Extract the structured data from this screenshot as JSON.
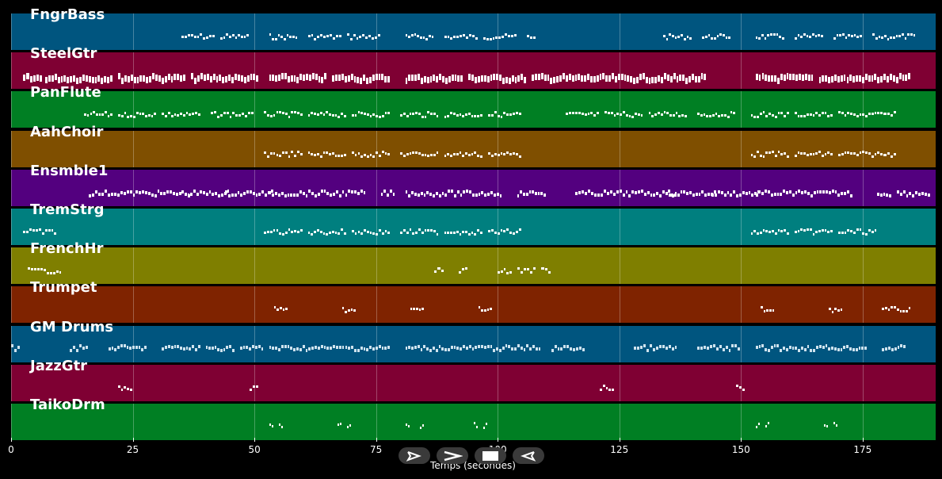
{
  "xlabel": "Temps (secondes)",
  "x_ticks": [
    0,
    25,
    50,
    75,
    100,
    125,
    150,
    175
  ],
  "x_range": [
    0,
    190
  ],
  "controls": [
    {
      "name": "play-button",
      "icon": "play-icon"
    },
    {
      "name": "forward-button",
      "icon": "chevron-right-icon"
    },
    {
      "name": "stop-button",
      "icon": "stop-icon"
    },
    {
      "name": "rewind-button",
      "icon": "rewind-icon"
    }
  ],
  "tracks": [
    {
      "label": "FngrBass",
      "color": "#00557f",
      "notes": [
        [
          35,
          7
        ],
        [
          43,
          6
        ],
        [
          53,
          6
        ],
        [
          61,
          7
        ],
        [
          69,
          7
        ],
        [
          81,
          6
        ],
        [
          89,
          7
        ],
        [
          97,
          7
        ],
        [
          106,
          2
        ],
        [
          134,
          6
        ],
        [
          142,
          6
        ],
        [
          153,
          6
        ],
        [
          161,
          6
        ],
        [
          169,
          6
        ],
        [
          177,
          6
        ],
        [
          183,
          3
        ]
      ]
    },
    {
      "label": "SteelGtr",
      "color": "#7f0033",
      "notes": [
        [
          2.5,
          4
        ],
        [
          7,
          14
        ],
        [
          22,
          14
        ],
        [
          37,
          14
        ],
        [
          53,
          12
        ],
        [
          66,
          12
        ],
        [
          81,
          12
        ],
        [
          94,
          12
        ],
        [
          107,
          12
        ],
        [
          119,
          12
        ],
        [
          131,
          12
        ],
        [
          153,
          12
        ],
        [
          166,
          12
        ],
        [
          178,
          7
        ]
      ]
    },
    {
      "label": "PanFlute",
      "color": "#007f23",
      "notes": [
        [
          15,
          6
        ],
        [
          22,
          8
        ],
        [
          31,
          8
        ],
        [
          41,
          9
        ],
        [
          52,
          8
        ],
        [
          61,
          8
        ],
        [
          70,
          8
        ],
        [
          80,
          8
        ],
        [
          89,
          8
        ],
        [
          98,
          7
        ],
        [
          114,
          7
        ],
        [
          122,
          8
        ],
        [
          131,
          8
        ],
        [
          141,
          8
        ],
        [
          152,
          8
        ],
        [
          161,
          8
        ],
        [
          170,
          8
        ],
        [
          178,
          4
        ]
      ]
    },
    {
      "label": "AahChoir",
      "color": "#7f4f00",
      "notes": [
        [
          52,
          8
        ],
        [
          61,
          8
        ],
        [
          70,
          8
        ],
        [
          80,
          8
        ],
        [
          89,
          8
        ],
        [
          98,
          7
        ],
        [
          152,
          8
        ],
        [
          161,
          8
        ],
        [
          170,
          8
        ],
        [
          178,
          4
        ]
      ]
    },
    {
      "label": "Ensmble1",
      "color": "#53007f",
      "notes": [
        [
          16,
          9
        ],
        [
          25,
          12
        ],
        [
          35,
          10
        ],
        [
          44,
          10
        ],
        [
          53,
          10
        ],
        [
          63,
          10
        ],
        [
          76,
          3
        ],
        [
          81,
          10
        ],
        [
          91,
          10
        ],
        [
          104,
          6
        ],
        [
          116,
          9
        ],
        [
          125,
          12
        ],
        [
          135,
          10
        ],
        [
          144,
          10
        ],
        [
          153,
          10
        ],
        [
          163,
          10
        ],
        [
          178,
          3
        ],
        [
          182,
          7
        ]
      ]
    },
    {
      "label": "TremStrg",
      "color": "#007f7f",
      "notes": [
        [
          2.5,
          7
        ],
        [
          52,
          8
        ],
        [
          61,
          8
        ],
        [
          70,
          8
        ],
        [
          80,
          8
        ],
        [
          89,
          8
        ],
        [
          98,
          7
        ],
        [
          152,
          8
        ],
        [
          161,
          8
        ],
        [
          170,
          8
        ]
      ]
    },
    {
      "label": "FrenchHr",
      "color": "#7f7f00",
      "notes": [
        [
          3.5,
          7
        ],
        [
          87,
          2
        ],
        [
          92,
          2
        ],
        [
          100,
          3
        ],
        [
          104,
          4
        ],
        [
          109,
          2
        ]
      ]
    },
    {
      "label": "Trumpet",
      "color": "#7f2300",
      "notes": [
        [
          54,
          3
        ],
        [
          68,
          3
        ],
        [
          82,
          3
        ],
        [
          96,
          3
        ],
        [
          154,
          3
        ],
        [
          168,
          3
        ],
        [
          179,
          6
        ]
      ]
    },
    {
      "label": "GM Drums",
      "color": "#00557f",
      "notes": [
        [
          0,
          2
        ],
        [
          12,
          4
        ],
        [
          20,
          8
        ],
        [
          31,
          8
        ],
        [
          40,
          6
        ],
        [
          47,
          5
        ],
        [
          53,
          25
        ],
        [
          81,
          28
        ],
        [
          111,
          7
        ],
        [
          128,
          9
        ],
        [
          141,
          9
        ],
        [
          153,
          23
        ],
        [
          179,
          5
        ]
      ]
    },
    {
      "label": "JazzGtr",
      "color": "#7f0033",
      "notes": [
        [
          22,
          3
        ],
        [
          49,
          2
        ],
        [
          121,
          3
        ],
        [
          149,
          2
        ]
      ]
    },
    {
      "label": "TaikoDrm",
      "color": "#007f23",
      "notes": [
        [
          53,
          1
        ],
        [
          55,
          1
        ],
        [
          67,
          1
        ],
        [
          69,
          1
        ],
        [
          81,
          1
        ],
        [
          84,
          1
        ],
        [
          95,
          1
        ],
        [
          97,
          1
        ],
        [
          153,
          1
        ],
        [
          155,
          1
        ],
        [
          167,
          1
        ],
        [
          169,
          1
        ]
      ]
    }
  ]
}
